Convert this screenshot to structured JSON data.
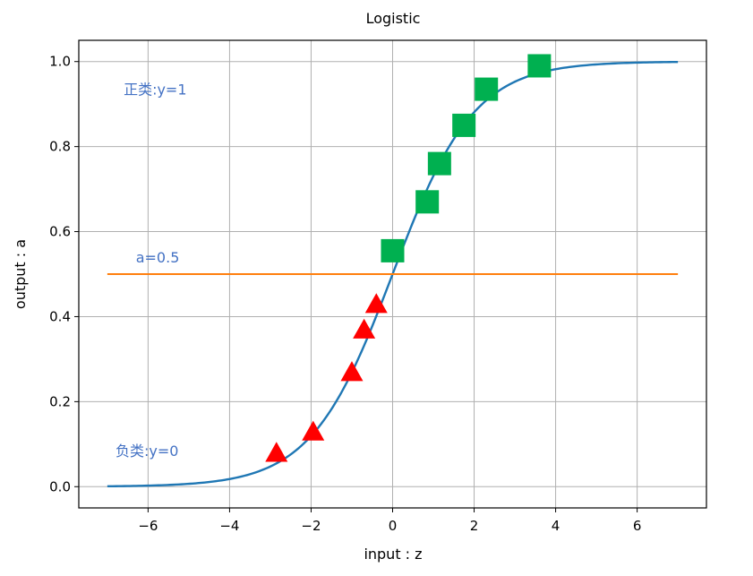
{
  "chart_data": {
    "type": "line",
    "title": "Logistic",
    "xlabel": "input : z",
    "ylabel": "output : a",
    "xlim": [
      -7.7,
      7.7
    ],
    "ylim": [
      -0.05,
      1.05
    ],
    "x_ticks": [
      -6,
      -4,
      -2,
      0,
      2,
      4,
      6
    ],
    "x_tick_labels": [
      "−6",
      "−4",
      "−2",
      "0",
      "2",
      "4",
      "6"
    ],
    "y_ticks": [
      0.0,
      0.2,
      0.4,
      0.6,
      0.8,
      1.0
    ],
    "y_tick_labels": [
      "0.0",
      "0.2",
      "0.4",
      "0.6",
      "0.8",
      "1.0"
    ],
    "grid": true,
    "series": [
      {
        "kind": "curve",
        "function": "sigmoid",
        "x_range": [
          -7,
          7
        ],
        "color": "#1f77b4"
      },
      {
        "kind": "hline",
        "y": 0.5,
        "x_range": [
          -7,
          7
        ],
        "color": "#ff7f0e"
      },
      {
        "kind": "scatter",
        "marker": "triangle",
        "color": "#ff0000",
        "points": [
          {
            "x": -2.85,
            "y": 0.08
          },
          {
            "x": -1.95,
            "y": 0.13
          },
          {
            "x": -1.0,
            "y": 0.27
          },
          {
            "x": -0.7,
            "y": 0.37
          },
          {
            "x": -0.4,
            "y": 0.43
          }
        ]
      },
      {
        "kind": "scatter",
        "marker": "square",
        "color": "#00b050",
        "points": [
          {
            "x": 0.0,
            "y": 0.555
          },
          {
            "x": 0.85,
            "y": 0.67
          },
          {
            "x": 1.15,
            "y": 0.76
          },
          {
            "x": 1.75,
            "y": 0.85
          },
          {
            "x": 2.3,
            "y": 0.935
          },
          {
            "x": 3.6,
            "y": 0.99
          }
        ]
      }
    ],
    "annotations": [
      {
        "text": "正类:y=1",
        "x": -6.6,
        "y": 0.935,
        "color": "#4472c4"
      },
      {
        "text": "a=0.5",
        "x": -6.3,
        "y": 0.54,
        "color": "#4472c4"
      },
      {
        "text": "负类:y=0",
        "x": -6.8,
        "y": 0.085,
        "color": "#4472c4"
      }
    ]
  }
}
